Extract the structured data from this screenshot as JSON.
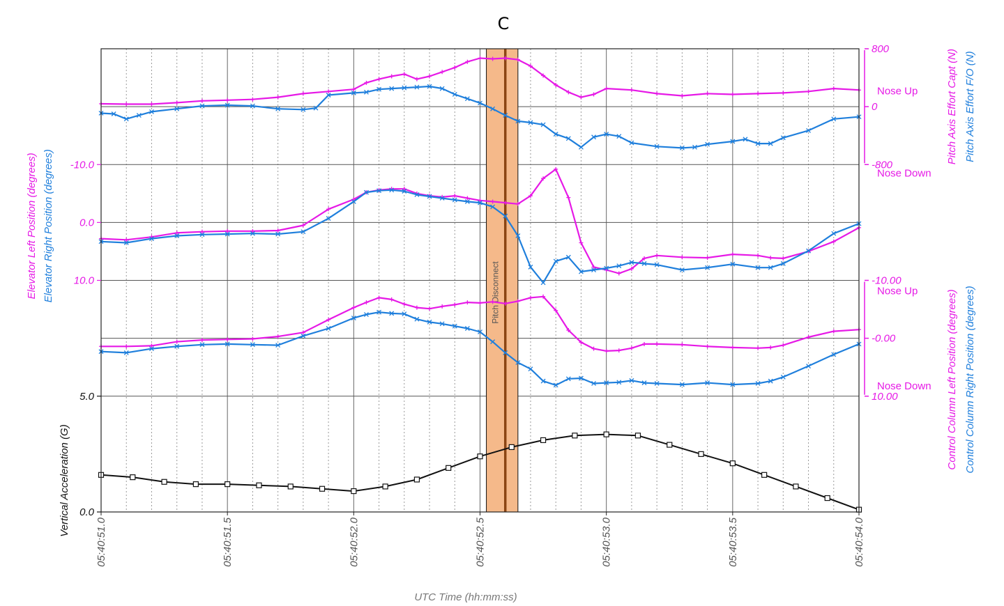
{
  "chart_data": {
    "type": "line",
    "title": "C",
    "xlabel": "UTC Time (hh:mm:ss)",
    "x_range": [
      51.0,
      54.0
    ],
    "x_ticks": [
      {
        "v": 51.0,
        "label": "05:40:51.0"
      },
      {
        "v": 51.5,
        "label": "05:40:51.5"
      },
      {
        "v": 52.0,
        "label": "05:40:52.0"
      },
      {
        "v": 52.5,
        "label": "05:40:52.5"
      },
      {
        "v": 53.0,
        "label": "05:40:53.0"
      },
      {
        "v": 53.5,
        "label": "05:40:53.5"
      },
      {
        "v": 54.0,
        "label": "05:40:54.0"
      }
    ],
    "grid": true,
    "colors": {
      "capt": "#e619e6",
      "fo": "#1f7fdc",
      "vert": "#111111",
      "band": "#f5b98a",
      "band_line": "#8b4513"
    },
    "pitch_disconnect": {
      "label": "Pitch Disconnect",
      "x_start": 52.525,
      "x_end": 52.65,
      "x_line": 52.6
    },
    "panels": [
      {
        "id": "pitch-effort",
        "ylim": [
          -800,
          800
        ],
        "inverted": false,
        "axis_side": "right",
        "ticks": [
          {
            "v": 800,
            "label": "800"
          },
          {
            "v": 0,
            "label": "0"
          },
          {
            "v": -800,
            "label": "-800"
          }
        ],
        "ylabels": [
          "Pitch Axis Effort Capt (N)",
          "Pitch Axis Effort F/O (N)"
        ],
        "annotations": [
          {
            "text": "Nose Up",
            "v": 220
          },
          {
            "text": "Nose Down",
            "v": -920
          }
        ],
        "series": [
          {
            "name": "Pitch Axis Effort Capt (N)",
            "key": "capt",
            "marker": "plus",
            "x": [
              51.0,
              51.1,
              51.2,
              51.3,
              51.4,
              51.5,
              51.6,
              51.7,
              51.8,
              51.9,
              52.0,
              52.05,
              52.1,
              52.15,
              52.2,
              52.25,
              52.3,
              52.35,
              52.4,
              52.45,
              52.5,
              52.55,
              52.6,
              52.65,
              52.7,
              52.75,
              52.8,
              52.85,
              52.9,
              52.95,
              53.0,
              53.1,
              53.2,
              53.3,
              53.4,
              53.5,
              53.6,
              53.7,
              53.8,
              53.9,
              54.0
            ],
            "y": [
              40,
              35,
              35,
              55,
              80,
              90,
              100,
              130,
              180,
              210,
              240,
              330,
              380,
              420,
              450,
              380,
              420,
              480,
              540,
              620,
              670,
              660,
              670,
              650,
              560,
              430,
              300,
              200,
              130,
              170,
              250,
              230,
              180,
              150,
              180,
              170,
              180,
              190,
              210,
              250,
              230
            ]
          },
          {
            "name": "Pitch Axis Effort F/O (N)",
            "key": "fo",
            "marker": "x",
            "x": [
              51.0,
              51.05,
              51.1,
              51.15,
              51.2,
              51.3,
              51.4,
              51.5,
              51.6,
              51.7,
              51.8,
              51.85,
              51.9,
              52.0,
              52.05,
              52.1,
              52.15,
              52.2,
              52.25,
              52.3,
              52.35,
              52.4,
              52.45,
              52.5,
              52.55,
              52.6,
              52.65,
              52.7,
              52.75,
              52.8,
              52.85,
              52.9,
              52.95,
              53.0,
              53.05,
              53.1,
              53.2,
              53.3,
              53.35,
              53.4,
              53.5,
              53.55,
              53.6,
              53.65,
              53.7,
              53.8,
              53.9,
              54.0
            ],
            "y": [
              -90,
              -100,
              -170,
              -120,
              -70,
              -30,
              10,
              20,
              10,
              -30,
              -40,
              -20,
              160,
              190,
              200,
              240,
              250,
              260,
              270,
              280,
              250,
              170,
              110,
              50,
              -30,
              -120,
              -200,
              -220,
              -250,
              -380,
              -440,
              -560,
              -420,
              -380,
              -410,
              -500,
              -550,
              -570,
              -560,
              -520,
              -480,
              -450,
              -510,
              -510,
              -430,
              -330,
              -170,
              -140
            ]
          }
        ]
      },
      {
        "id": "elevator",
        "ylim": [
          -10,
          10
        ],
        "inverted": true,
        "axis_side": "left",
        "ticks": [
          {
            "v": -10,
            "label": "-10.0"
          },
          {
            "v": 0,
            "label": "0.0"
          },
          {
            "v": 10,
            "label": "10.0"
          }
        ],
        "ylabels": [
          "Elevator Left Position (degrees)",
          "Elevator Right Position (degrees)"
        ],
        "annotations": [],
        "series": [
          {
            "name": "Elevator Left Position (degrees)",
            "key": "capt",
            "marker": "plus",
            "x": [
              51.0,
              51.1,
              51.2,
              51.3,
              51.4,
              51.5,
              51.6,
              51.7,
              51.8,
              51.9,
              52.0,
              52.05,
              52.1,
              52.15,
              52.2,
              52.25,
              52.3,
              52.35,
              52.4,
              52.45,
              52.5,
              52.55,
              52.6,
              52.65,
              52.7,
              52.75,
              52.8,
              52.85,
              52.9,
              52.95,
              53.0,
              53.05,
              53.1,
              53.15,
              53.2,
              53.3,
              53.4,
              53.5,
              53.6,
              53.65,
              53.7,
              53.8,
              53.9,
              54.0
            ],
            "y": [
              2.8,
              3.0,
              2.5,
              1.8,
              1.6,
              1.5,
              1.5,
              1.4,
              0.5,
              -2.3,
              -4.0,
              -5.2,
              -5.6,
              -5.8,
              -5.8,
              -5.0,
              -4.6,
              -4.4,
              -4.6,
              -4.2,
              -3.8,
              -3.6,
              -3.4,
              -3.2,
              -4.6,
              -7.6,
              -9.2,
              -4.3,
              3.5,
              7.7,
              8.2,
              8.8,
              8.0,
              6.2,
              5.7,
              6.0,
              6.1,
              5.5,
              5.7,
              6.1,
              6.2,
              5.0,
              3.3,
              0.9
            ]
          },
          {
            "name": "Elevator Right Position (degrees)",
            "key": "fo",
            "marker": "x",
            "x": [
              51.0,
              51.1,
              51.2,
              51.3,
              51.4,
              51.5,
              51.6,
              51.7,
              51.8,
              51.9,
              52.0,
              52.05,
              52.1,
              52.15,
              52.2,
              52.25,
              52.3,
              52.35,
              52.4,
              52.45,
              52.5,
              52.55,
              52.6,
              52.65,
              52.7,
              52.75,
              52.8,
              52.85,
              52.9,
              52.95,
              53.0,
              53.05,
              53.1,
              53.15,
              53.2,
              53.3,
              53.4,
              53.5,
              53.6,
              53.65,
              53.7,
              53.8,
              53.9,
              54.0
            ],
            "y": [
              3.3,
              3.5,
              2.8,
              2.3,
              2.1,
              2.0,
              1.9,
              2.0,
              1.6,
              -0.7,
              -3.6,
              -5.2,
              -5.5,
              -5.6,
              -5.4,
              -4.8,
              -4.5,
              -4.2,
              -3.9,
              -3.6,
              -3.4,
              -2.7,
              -1.1,
              2.3,
              7.7,
              10.4,
              6.7,
              6.0,
              8.5,
              8.2,
              7.9,
              7.5,
              6.9,
              7.1,
              7.3,
              8.2,
              7.8,
              7.2,
              7.8,
              7.8,
              7.1,
              4.9,
              1.9,
              0.2
            ]
          }
        ]
      },
      {
        "id": "control-column",
        "ylim": [
          -10,
          10
        ],
        "inverted": true,
        "axis_side": "right",
        "ticks": [
          {
            "v": -10,
            "label": "-10.00"
          },
          {
            "v": 0,
            "label": "-0.00"
          },
          {
            "v": 10,
            "label": "10.00"
          }
        ],
        "ylabels": [
          "Control Column Left Position (degrees)",
          "Control Column Right Position (degrees)"
        ],
        "annotations": [
          {
            "text": "Nose Up",
            "v": -8.2
          },
          {
            "text": "Nose Down",
            "v": 8.2
          }
        ],
        "series": [
          {
            "name": "Control Column Left Position (degrees)",
            "key": "capt",
            "marker": "plus",
            "x": [
              51.0,
              51.1,
              51.2,
              51.3,
              51.4,
              51.5,
              51.6,
              51.7,
              51.8,
              51.9,
              52.0,
              52.05,
              52.1,
              52.15,
              52.2,
              52.25,
              52.3,
              52.35,
              52.4,
              52.45,
              52.5,
              52.55,
              52.6,
              52.65,
              52.7,
              52.75,
              52.8,
              52.85,
              52.9,
              52.95,
              53.0,
              53.05,
              53.1,
              53.15,
              53.2,
              53.3,
              53.4,
              53.5,
              53.6,
              53.65,
              53.7,
              53.8,
              53.9,
              54.0
            ],
            "y": [
              1.4,
              1.4,
              1.3,
              0.6,
              0.3,
              0.2,
              0.1,
              -0.3,
              -1.0,
              -3.2,
              -5.3,
              -6.2,
              -7.0,
              -6.7,
              -5.9,
              -5.3,
              -5.1,
              -5.5,
              -5.8,
              -6.2,
              -6.1,
              -6.3,
              -6.0,
              -6.4,
              -7.0,
              -7.2,
              -4.8,
              -1.4,
              0.7,
              1.8,
              2.2,
              2.1,
              1.7,
              1.0,
              1.0,
              1.1,
              1.4,
              1.6,
              1.7,
              1.6,
              1.2,
              -0.2,
              -1.2,
              -1.5
            ]
          },
          {
            "name": "Control Column Right Position (degrees)",
            "key": "fo",
            "marker": "x",
            "x": [
              51.0,
              51.1,
              51.2,
              51.3,
              51.4,
              51.5,
              51.6,
              51.7,
              51.8,
              51.9,
              52.0,
              52.05,
              52.1,
              52.15,
              52.2,
              52.25,
              52.3,
              52.35,
              52.4,
              52.45,
              52.5,
              52.55,
              52.6,
              52.65,
              52.7,
              52.75,
              52.8,
              52.85,
              52.9,
              52.95,
              53.0,
              53.05,
              53.1,
              53.15,
              53.2,
              53.3,
              53.4,
              53.5,
              53.6,
              53.65,
              53.7,
              53.8,
              53.9,
              54.0
            ],
            "y": [
              2.3,
              2.5,
              1.8,
              1.4,
              1.1,
              1.0,
              1.1,
              1.2,
              -0.4,
              -1.7,
              -3.5,
              -4.1,
              -4.5,
              -4.3,
              -4.2,
              -3.3,
              -2.8,
              -2.5,
              -2.1,
              -1.7,
              -1.1,
              0.6,
              2.5,
              4.2,
              5.3,
              7.4,
              8.1,
              7.0,
              6.9,
              7.8,
              7.7,
              7.6,
              7.3,
              7.7,
              7.8,
              8.0,
              7.7,
              8.0,
              7.8,
              7.4,
              6.7,
              4.8,
              2.8,
              1.0
            ]
          }
        ]
      },
      {
        "id": "vertical-acceleration",
        "ylim": [
          0,
          5
        ],
        "inverted": false,
        "axis_side": "left",
        "ticks": [
          {
            "v": 5,
            "label": "5.0"
          },
          {
            "v": 0,
            "label": "0.0"
          }
        ],
        "ylabels": [
          "Vertical Acceleration (G)"
        ],
        "annotations": [],
        "series": [
          {
            "name": "Vertical Acceleration (G)",
            "key": "vert",
            "marker": "square",
            "x": [
              51.0,
              51.125,
              51.25,
              51.375,
              51.5,
              51.625,
              51.75,
              51.875,
              52.0,
              52.125,
              52.25,
              52.375,
              52.5,
              52.625,
              52.75,
              52.875,
              53.0,
              53.125,
              53.25,
              53.375,
              53.5,
              53.625,
              53.75,
              53.875,
              54.0
            ],
            "y": [
              1.6,
              1.5,
              1.3,
              1.2,
              1.2,
              1.15,
              1.1,
              1.0,
              0.9,
              1.1,
              1.4,
              1.9,
              2.4,
              2.8,
              3.1,
              3.3,
              3.35,
              3.3,
              2.9,
              2.5,
              2.1,
              1.6,
              1.1,
              0.6,
              0.1
            ]
          }
        ]
      }
    ]
  }
}
